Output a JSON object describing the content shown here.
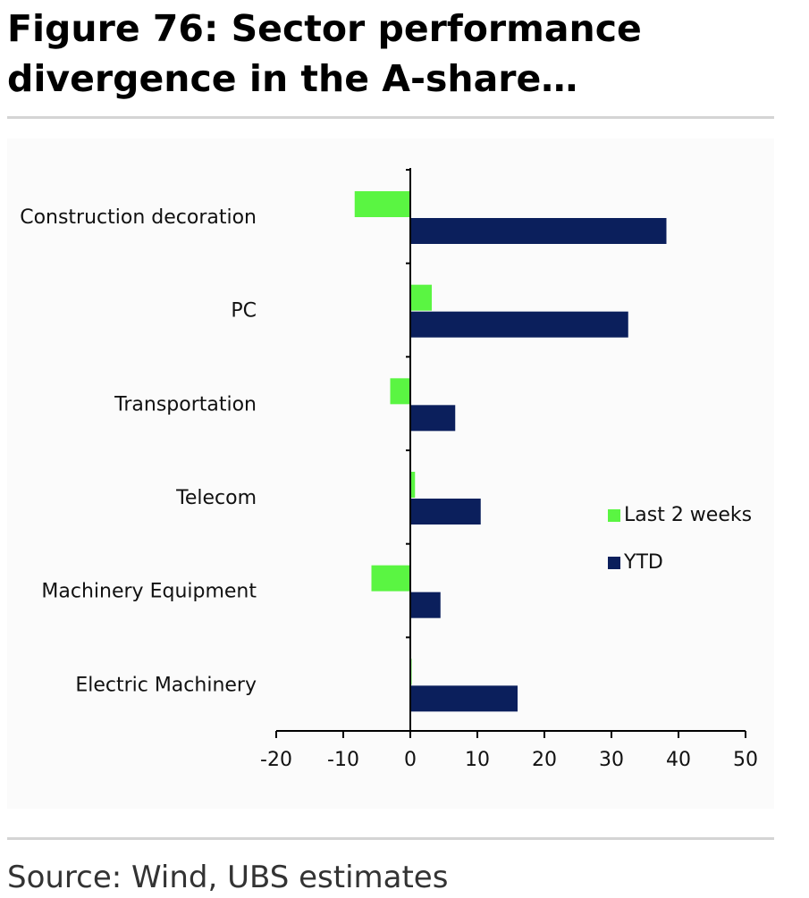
{
  "figure": {
    "title": "Figure 76: Sector performance divergence in the A-share…",
    "source": "Source: Wind, UBS estimates"
  },
  "colors": {
    "last_2_weeks": "#5af542",
    "ytd": "#0b1f5c",
    "axis": "#000000",
    "rule": "#d4d4d4"
  },
  "chart_data": {
    "type": "bar",
    "orientation": "horizontal",
    "categories": [
      "Construction decoration",
      "PC",
      "Transportation",
      "Telecom",
      "Machinery Equipment",
      "Electric Machinery"
    ],
    "series": [
      {
        "name": "Last 2 weeks",
        "values": [
          -8.3,
          3.2,
          -3.0,
          0.7,
          -5.8,
          0.2
        ]
      },
      {
        "name": "YTD",
        "values": [
          38.2,
          32.5,
          6.7,
          10.5,
          4.5,
          16.0
        ]
      }
    ],
    "xlim": [
      -20,
      50
    ],
    "xticks": [
      -20,
      -10,
      0,
      10,
      20,
      30,
      40,
      50
    ],
    "legend_position": "right",
    "grid": false
  }
}
